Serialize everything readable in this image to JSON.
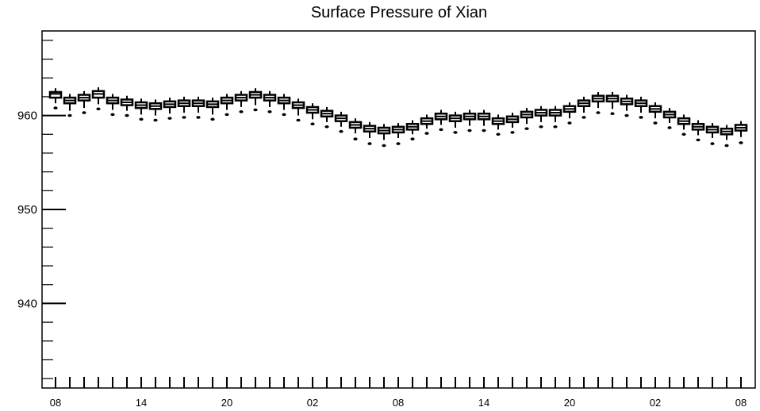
{
  "chart_data": {
    "type": "box",
    "title": "Surface Pressure of Xian",
    "xlabel": "",
    "ylabel": "",
    "ylim": [
      931.0,
      969.0
    ],
    "y_ticks": [
      940,
      950,
      960
    ],
    "x_tick_labels": [
      {
        "index": 0,
        "label": "08"
      },
      {
        "index": 6,
        "label": "14"
      },
      {
        "index": 12,
        "label": "20"
      },
      {
        "index": 18,
        "label": "02"
      },
      {
        "index": 24,
        "label": "08"
      },
      {
        "index": 30,
        "label": "14"
      },
      {
        "index": 36,
        "label": "20"
      },
      {
        "index": 42,
        "label": "02"
      },
      {
        "index": 48,
        "label": "08"
      }
    ],
    "grid": false,
    "series": [
      {
        "median": [
          962.3,
          961.6,
          961.9,
          962.3,
          961.6,
          961.4,
          961.1,
          961.0,
          961.2,
          961.3,
          961.3,
          961.2,
          961.6,
          961.9,
          962.2,
          961.9,
          961.6,
          961.1,
          960.6,
          960.2,
          959.7,
          959.0,
          958.6,
          958.4,
          958.5,
          958.8,
          959.4,
          959.9,
          959.7,
          959.9,
          959.9,
          959.4,
          959.6,
          960.1,
          960.3,
          960.3,
          960.7,
          961.3,
          961.8,
          961.8,
          961.5,
          961.3,
          960.7,
          960.1,
          959.4,
          958.8,
          958.5,
          958.3,
          958.7
        ],
        "q1": [
          961.9,
          961.3,
          961.6,
          961.9,
          961.3,
          961.1,
          960.8,
          960.7,
          960.9,
          961.0,
          961.0,
          960.9,
          961.3,
          961.6,
          961.9,
          961.6,
          961.3,
          960.8,
          960.3,
          959.9,
          959.4,
          958.7,
          958.3,
          958.1,
          958.2,
          958.5,
          959.1,
          959.6,
          959.4,
          959.6,
          959.6,
          959.1,
          959.3,
          959.8,
          960.0,
          960.0,
          960.4,
          961.0,
          961.5,
          961.5,
          961.2,
          961.0,
          960.4,
          959.8,
          959.1,
          958.5,
          958.2,
          958.0,
          958.4
        ],
        "q3": [
          962.5,
          961.9,
          962.2,
          962.6,
          961.9,
          961.7,
          961.4,
          961.3,
          961.5,
          961.6,
          961.6,
          961.5,
          961.9,
          962.2,
          962.5,
          962.2,
          961.9,
          961.4,
          960.9,
          960.5,
          960.0,
          959.3,
          958.9,
          958.7,
          958.8,
          959.1,
          959.7,
          960.2,
          960.0,
          960.2,
          960.2,
          959.7,
          959.9,
          960.4,
          960.6,
          960.6,
          961.0,
          961.6,
          962.1,
          962.1,
          961.8,
          961.6,
          961.0,
          960.4,
          959.7,
          959.1,
          958.8,
          958.6,
          959.0
        ],
        "whisker_low": [
          961.3,
          960.5,
          960.8,
          961.2,
          960.6,
          960.5,
          960.1,
          960.0,
          960.2,
          960.3,
          960.3,
          960.1,
          960.6,
          960.9,
          961.1,
          960.9,
          960.6,
          960.0,
          959.6,
          959.3,
          958.8,
          958.1,
          957.6,
          957.4,
          957.6,
          958.0,
          958.6,
          959.0,
          958.7,
          958.9,
          958.9,
          958.5,
          958.7,
          959.1,
          959.3,
          959.3,
          959.7,
          960.3,
          960.8,
          960.7,
          960.5,
          960.3,
          959.7,
          959.2,
          958.5,
          957.9,
          957.6,
          957.4,
          957.7
        ],
        "whisker_high": [
          962.9,
          962.3,
          962.6,
          963.0,
          962.3,
          962.1,
          961.8,
          961.7,
          961.9,
          962.0,
          962.0,
          961.9,
          962.3,
          962.6,
          962.9,
          962.6,
          962.3,
          961.8,
          961.3,
          960.9,
          960.4,
          959.7,
          959.3,
          959.1,
          959.2,
          959.5,
          960.1,
          960.6,
          960.4,
          960.6,
          960.6,
          960.1,
          960.3,
          960.8,
          961.0,
          961.0,
          961.4,
          962.0,
          962.5,
          962.5,
          962.2,
          962.0,
          961.4,
          960.8,
          960.1,
          959.5,
          959.2,
          959.0,
          959.4
        ],
        "outlier_low": [
          960.8,
          960.0,
          960.3,
          960.7,
          960.1,
          960.0,
          959.6,
          959.5,
          959.7,
          959.8,
          959.8,
          959.6,
          960.1,
          960.4,
          960.6,
          960.4,
          960.1,
          959.5,
          959.1,
          958.8,
          958.3,
          957.5,
          957.0,
          956.8,
          957.0,
          957.5,
          958.1,
          958.5,
          958.2,
          958.4,
          958.4,
          958.0,
          958.2,
          958.6,
          958.8,
          958.8,
          959.2,
          959.8,
          960.3,
          960.2,
          960.0,
          959.8,
          959.2,
          958.7,
          958.0,
          957.4,
          957.0,
          956.8,
          957.1
        ]
      }
    ]
  }
}
